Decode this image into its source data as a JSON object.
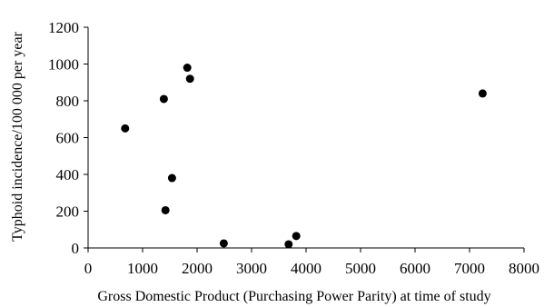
{
  "chart_data": {
    "type": "scatter",
    "title": "",
    "xlabel": "Gross Domestic Product (Purchasing Power Parity) at time of study",
    "ylabel": "Typhoid incidence/100 000 per year",
    "xlim": [
      0,
      8000
    ],
    "ylim": [
      0,
      1200
    ],
    "x_ticks": [
      0,
      1000,
      2000,
      3000,
      4000,
      5000,
      6000,
      7000,
      8000
    ],
    "y_ticks": [
      0,
      200,
      400,
      600,
      800,
      1000,
      1200
    ],
    "grid": false,
    "legend": "none",
    "marker_color": "#000000",
    "series": [
      {
        "points": [
          {
            "x": 680,
            "y": 650
          },
          {
            "x": 1390,
            "y": 810
          },
          {
            "x": 1420,
            "y": 205
          },
          {
            "x": 1540,
            "y": 380
          },
          {
            "x": 1820,
            "y": 980
          },
          {
            "x": 1870,
            "y": 920
          },
          {
            "x": 2490,
            "y": 25
          },
          {
            "x": 3680,
            "y": 20
          },
          {
            "x": 3820,
            "y": 65
          },
          {
            "x": 7240,
            "y": 840
          }
        ]
      }
    ]
  }
}
